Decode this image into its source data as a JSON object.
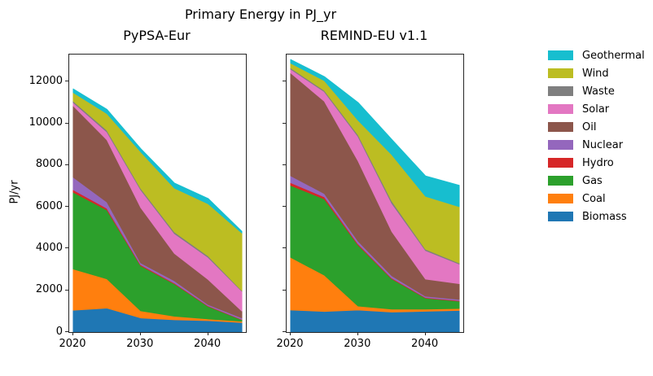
{
  "title": "Primary Energy in PJ_yr",
  "ylabel": "PJ/yr",
  "legend": {
    "entries": [
      {
        "label": "Geothermal",
        "color": "#17becf"
      },
      {
        "label": "Wind",
        "color": "#bcbd22"
      },
      {
        "label": "Waste",
        "color": "#7f7f7f"
      },
      {
        "label": "Solar",
        "color": "#e377c2"
      },
      {
        "label": "Oil",
        "color": "#8c564b"
      },
      {
        "label": "Nuclear",
        "color": "#9467bd"
      },
      {
        "label": "Hydro",
        "color": "#d62728"
      },
      {
        "label": "Gas",
        "color": "#2ca02c"
      },
      {
        "label": "Coal",
        "color": "#ff7f0e"
      },
      {
        "label": "Biomass",
        "color": "#1f77b4"
      }
    ]
  },
  "chart_data": [
    {
      "type": "area",
      "title": "PyPSA-Eur",
      "ylabel": "PJ/yr",
      "x": [
        2020,
        2025,
        2030,
        2035,
        2040,
        2045
      ],
      "xlim": [
        2019.4,
        2045.6
      ],
      "ylim": [
        0,
        13300
      ],
      "xticks": [
        2020,
        2030,
        2040
      ],
      "yticks": [
        0,
        2000,
        4000,
        6000,
        8000,
        10000,
        12000
      ],
      "show_yticklabels": true,
      "grid": false,
      "stack_order": "bottom-to-top",
      "series": [
        {
          "name": "Biomass",
          "color": "#1f77b4",
          "values": [
            1050,
            1150,
            680,
            590,
            550,
            460
          ]
        },
        {
          "name": "Coal",
          "color": "#ff7f0e",
          "values": [
            1970,
            1400,
            340,
            170,
            80,
            60
          ]
        },
        {
          "name": "Gas",
          "color": "#2ca02c",
          "values": [
            3680,
            3300,
            2160,
            1550,
            600,
            70
          ]
        },
        {
          "name": "Hydro",
          "color": "#d62728",
          "values": [
            120,
            80,
            50,
            40,
            30,
            20
          ]
        },
        {
          "name": "Nuclear",
          "color": "#9467bd",
          "values": [
            600,
            300,
            90,
            110,
            60,
            70
          ]
        },
        {
          "name": "Oil",
          "color": "#8c564b",
          "values": [
            3420,
            2980,
            2650,
            1310,
            1200,
            330
          ]
        },
        {
          "name": "Solar",
          "color": "#e377c2",
          "values": [
            160,
            380,
            850,
            950,
            1060,
            950
          ]
        },
        {
          "name": "Waste",
          "color": "#7f7f7f",
          "values": [
            70,
            80,
            70,
            80,
            70,
            30
          ]
        },
        {
          "name": "Wind",
          "color": "#bcbd22",
          "values": [
            410,
            800,
            1750,
            2100,
            2500,
            2760
          ]
        },
        {
          "name": "Geothermal",
          "color": "#17becf",
          "values": [
            170,
            200,
            150,
            240,
            250,
            75
          ]
        }
      ]
    },
    {
      "type": "area",
      "title": "REMIND-EU v1.1",
      "ylabel": "PJ/yr",
      "x": [
        2020,
        2025,
        2030,
        2035,
        2040,
        2045
      ],
      "xlim": [
        2019.4,
        2045.6
      ],
      "ylim": [
        0,
        13300
      ],
      "xticks": [
        2020,
        2030,
        2040
      ],
      "yticks": [
        0,
        2000,
        4000,
        6000,
        8000,
        10000,
        12000
      ],
      "show_yticklabels": false,
      "grid": false,
      "stack_order": "bottom-to-top",
      "series": [
        {
          "name": "Biomass",
          "color": "#1f77b4",
          "values": [
            1060,
            990,
            1060,
            960,
            1000,
            1040
          ]
        },
        {
          "name": "Coal",
          "color": "#ff7f0e",
          "values": [
            2520,
            1740,
            190,
            140,
            100,
            90
          ]
        },
        {
          "name": "Gas",
          "color": "#2ca02c",
          "values": [
            3450,
            3650,
            2920,
            1450,
            530,
            350
          ]
        },
        {
          "name": "Hydro",
          "color": "#d62728",
          "values": [
            130,
            100,
            60,
            40,
            30,
            30
          ]
        },
        {
          "name": "Nuclear",
          "color": "#9467bd",
          "values": [
            330,
            160,
            130,
            110,
            60,
            60
          ]
        },
        {
          "name": "Oil",
          "color": "#8c564b",
          "values": [
            4930,
            4420,
            3840,
            2120,
            820,
            750
          ]
        },
        {
          "name": "Solar",
          "color": "#e377c2",
          "values": [
            180,
            460,
            1170,
            1350,
            1370,
            940
          ]
        },
        {
          "name": "Waste",
          "color": "#7f7f7f",
          "values": [
            60,
            60,
            80,
            110,
            60,
            50
          ]
        },
        {
          "name": "Wind",
          "color": "#bcbd22",
          "values": [
            230,
            470,
            700,
            2220,
            2540,
            2700
          ]
        },
        {
          "name": "Geothermal",
          "color": "#17becf",
          "values": [
            170,
            190,
            850,
            730,
            970,
            1020
          ]
        }
      ]
    }
  ]
}
